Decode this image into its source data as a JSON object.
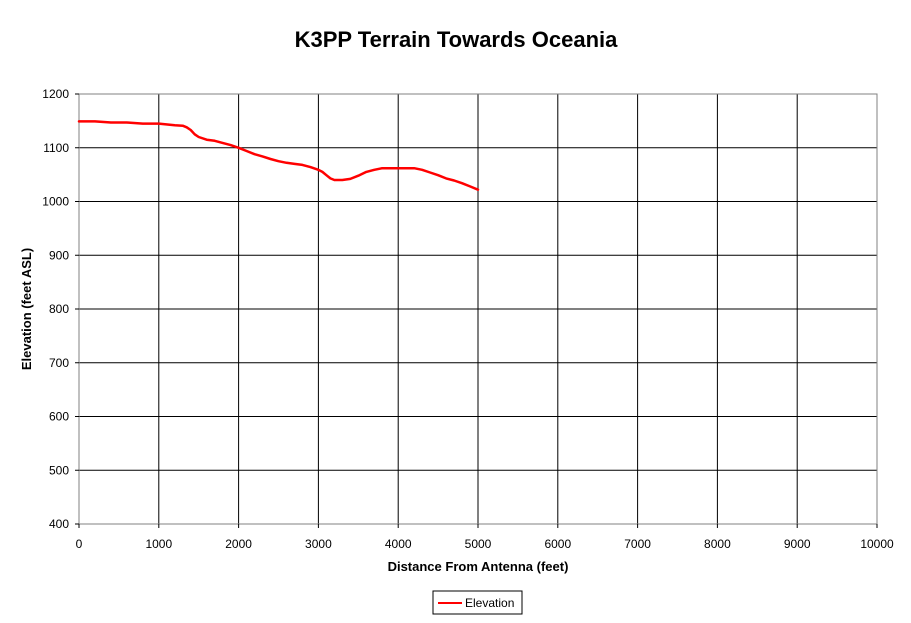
{
  "chart_data": {
    "type": "line",
    "title": "K3PP Terrain Towards Oceania",
    "xlabel": "Distance From Antenna (feet)",
    "ylabel": "Elevation (feet ASL)",
    "xlim": [
      0,
      10000
    ],
    "ylim": [
      400,
      1200
    ],
    "xticks": [
      0,
      1000,
      2000,
      3000,
      4000,
      5000,
      6000,
      7000,
      8000,
      9000,
      10000
    ],
    "yticks": [
      400,
      500,
      600,
      700,
      800,
      900,
      1000,
      1100,
      1200
    ],
    "grid": true,
    "legend_position": "bottom-center",
    "series": [
      {
        "name": "Elevation",
        "color": "#ff0000",
        "x": [
          0,
          200,
          400,
          600,
          800,
          1000,
          1200,
          1300,
          1350,
          1400,
          1450,
          1500,
          1600,
          1700,
          1800,
          1900,
          2000,
          2100,
          2200,
          2300,
          2400,
          2500,
          2600,
          2700,
          2800,
          2900,
          3000,
          3050,
          3100,
          3150,
          3200,
          3300,
          3400,
          3500,
          3600,
          3700,
          3800,
          3900,
          4000,
          4100,
          4200,
          4300,
          4400,
          4500,
          4600,
          4700,
          4800,
          4900,
          5000
        ],
        "values": [
          1149,
          1149,
          1147,
          1147,
          1145,
          1145,
          1142,
          1141,
          1138,
          1133,
          1125,
          1120,
          1115,
          1113,
          1109,
          1105,
          1100,
          1094,
          1088,
          1084,
          1079,
          1075,
          1072,
          1070,
          1068,
          1064,
          1059,
          1055,
          1049,
          1043,
          1040,
          1040,
          1042,
          1048,
          1055,
          1059,
          1062,
          1062,
          1062,
          1062,
          1062,
          1059,
          1054,
          1049,
          1043,
          1039,
          1034,
          1028,
          1022
        ]
      }
    ]
  }
}
